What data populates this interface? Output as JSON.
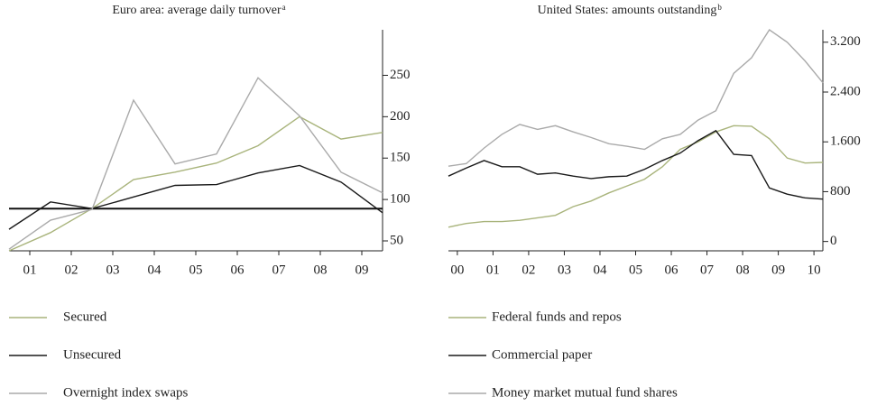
{
  "chart_data": [
    {
      "type": "line",
      "title": "Euro area: average daily turnover",
      "title_note": "a",
      "x": [
        0.5,
        1.5,
        2.5,
        3.5,
        4.5,
        5.5,
        6.5,
        7.5,
        8.5,
        9.5
      ],
      "xlim": [
        0.5,
        9.5
      ],
      "xticks": [
        {
          "value": 1,
          "label": "01"
        },
        {
          "value": 2,
          "label": "02"
        },
        {
          "value": 3,
          "label": "03"
        },
        {
          "value": 4,
          "label": "04"
        },
        {
          "value": 5,
          "label": "05"
        },
        {
          "value": 6,
          "label": "06"
        },
        {
          "value": 7,
          "label": "07"
        },
        {
          "value": 8,
          "label": "08"
        },
        {
          "value": 9,
          "label": "09"
        }
      ],
      "ylim": [
        38,
        305
      ],
      "yticks": [
        50,
        100,
        150,
        200,
        250
      ],
      "hline": 89,
      "series": [
        {
          "name": "Secured",
          "color": "#a9b47c",
          "values": [
            38,
            60,
            89,
            124,
            133,
            144,
            165,
            200,
            173,
            181
          ]
        },
        {
          "name": "Unsecured",
          "color": "#1a1a1a",
          "values": [
            64,
            97,
            89,
            103,
            117,
            118,
            132,
            141,
            121,
            84
          ]
        },
        {
          "name": "Overnight index swaps",
          "color": "#aaaaaa",
          "values": [
            40,
            75,
            88,
            220,
            143,
            155,
            247,
            201,
            133,
            108
          ]
        }
      ]
    },
    {
      "type": "line",
      "title": "United States: amounts outstanding",
      "title_note": "b",
      "x": [
        -0.25,
        0.25,
        0.75,
        1.25,
        1.75,
        2.25,
        2.75,
        3.25,
        3.75,
        4.25,
        4.75,
        5.25,
        5.75,
        6.25,
        6.75,
        7.25,
        7.75,
        8.25,
        8.75,
        9.25,
        9.75,
        10.25
      ],
      "xlim": [
        -0.25,
        10.25
      ],
      "xticks": [
        {
          "value": 0,
          "label": "00"
        },
        {
          "value": 1,
          "label": "01"
        },
        {
          "value": 2,
          "label": "02"
        },
        {
          "value": 3,
          "label": "03"
        },
        {
          "value": 4,
          "label": "04"
        },
        {
          "value": 5,
          "label": "05"
        },
        {
          "value": 6,
          "label": "06"
        },
        {
          "value": 7,
          "label": "07"
        },
        {
          "value": 8,
          "label": "08"
        },
        {
          "value": 9,
          "label": "09"
        },
        {
          "value": 10,
          "label": "10"
        }
      ],
      "ylim": [
        -150,
        3400
      ],
      "yticks": [
        0,
        800,
        {
          "value": 1600,
          "label": "1.600"
        },
        {
          "value": 2400,
          "label": "2.400"
        },
        {
          "value": 3200,
          "label": "3.200"
        }
      ],
      "series": [
        {
          "name": "Federal funds and repos",
          "color": "#a9b47c",
          "values": [
            230,
            290,
            320,
            320,
            340,
            380,
            420,
            560,
            650,
            780,
            890,
            1000,
            1200,
            1480,
            1600,
            1760,
            1860,
            1850,
            1650,
            1340,
            1260,
            1270
          ]
        },
        {
          "name": "Commercial paper",
          "color": "#1a1a1a",
          "values": [
            1050,
            1180,
            1300,
            1200,
            1200,
            1080,
            1100,
            1050,
            1010,
            1040,
            1050,
            1160,
            1300,
            1420,
            1620,
            1780,
            1400,
            1380,
            860,
            760,
            700,
            680
          ]
        },
        {
          "name": "Money market mutual fund shares",
          "color": "#aaaaaa",
          "values": [
            1210,
            1250,
            1500,
            1720,
            1880,
            1800,
            1860,
            1760,
            1670,
            1570,
            1530,
            1480,
            1650,
            1720,
            1950,
            2100,
            2700,
            2950,
            3400,
            3200,
            2900,
            2550
          ]
        }
      ]
    }
  ]
}
